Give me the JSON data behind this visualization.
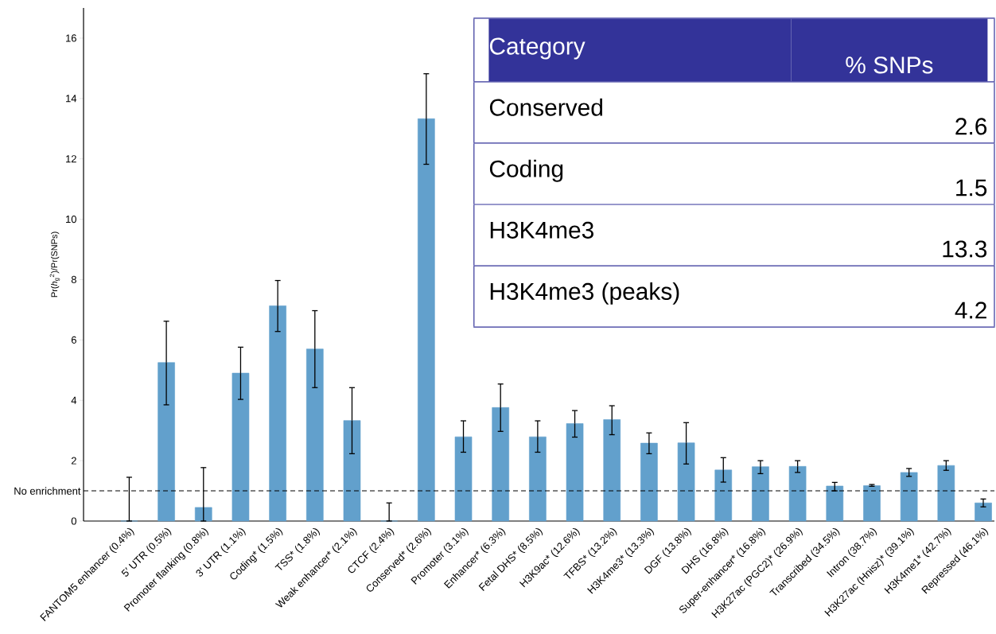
{
  "chart_data": {
    "type": "bar",
    "ylabel": "Pr(*h*$_{g}$$^{2}$)/Pr(SNPs)",
    "categories": [
      "FANTOM5 enhancer (0.4%)",
      "5′ UTR (0.5%)",
      "Promoter flanking (0.8%)",
      "3′ UTR (1.1%)",
      "Coding* (1.5%)",
      "TSS* (1.8%)",
      "Weak enhancer* (2.1%)",
      "CTCF (2.4%)",
      "Conserved* (2.6%)",
      "Promoter (3.1%)",
      "Enhancer* (6.3%)",
      "Fetal DHS* (8.5%)",
      "H3K9ac* (12.6%)",
      "TFBS* (13.2%)",
      "H3K4me3* (13.3%)",
      "DGF (13.8%)",
      "DHS (16.8%)",
      "Super-enhancer* (16.8%)",
      "H3K27ac (PGC2)* (26.9%)",
      "Transcribed (34.5%)",
      "Intron (38.7%)",
      "H3K27ac (Hnisz)* (39.1%)",
      "H3K4me1* (42.7%)",
      "Repressed (46.1%)"
    ],
    "values": [
      0,
      5.25,
      0.45,
      4.9,
      7.13,
      5.7,
      3.33,
      0,
      13.33,
      2.79,
      3.76,
      2.79,
      3.23,
      3.36,
      2.58,
      2.59,
      1.69,
      1.8,
      1.81,
      1.16,
      1.17,
      1.61,
      1.84,
      0.6
    ],
    "errors": [
      [
        0,
        1.45
      ],
      [
        3.85,
        6.62
      ],
      [
        0,
        1.77
      ],
      [
        4.03,
        5.76
      ],
      [
        6.28,
        7.97
      ],
      [
        4.42,
        6.97
      ],
      [
        2.23,
        4.42
      ],
      [
        0,
        0.6
      ],
      [
        11.82,
        14.82
      ],
      [
        2.28,
        3.32
      ],
      [
        2.97,
        4.54
      ],
      [
        2.28,
        3.32
      ],
      [
        2.78,
        3.66
      ],
      [
        2.86,
        3.82
      ],
      [
        2.23,
        2.92
      ],
      [
        1.89,
        3.26
      ],
      [
        1.29,
        2.1
      ],
      [
        1.57,
        2.0
      ],
      [
        1.61,
        2.0
      ],
      [
        1.0,
        1.28
      ],
      [
        1.15,
        1.21
      ],
      [
        1.48,
        1.74
      ],
      [
        1.68,
        2.0
      ],
      [
        0.47,
        0.73
      ]
    ],
    "color": "#62a0cc",
    "ylim": [
      0,
      17
    ],
    "yticks": [
      0,
      2,
      4,
      6,
      8,
      10,
      12,
      14,
      16
    ],
    "ref_lines": [
      {
        "axis": "y",
        "value": 1,
        "label": "No enrichment",
        "line_style": "dashed",
        "color": "#000000"
      }
    ],
    "annotations": [
      "Category",
      "% SNPs",
      "Conserved",
      "2.6",
      "Coding",
      "1.5",
      "H3K4me3",
      "13.3",
      "H3K4me3 (peaks)",
      "4.2"
    ]
  }
}
